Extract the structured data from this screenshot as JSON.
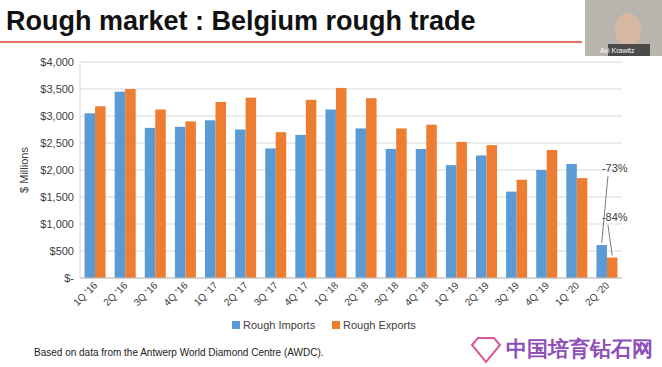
{
  "chart_data": {
    "type": "bar",
    "title": "Rough market : Belgium rough trade",
    "y_label": "$ Millions",
    "categories": [
      "1Q '16",
      "2Q '16",
      "3Q '16",
      "4Q '16",
      "1Q '17",
      "2Q '17",
      "3Q '17",
      "4Q '17",
      "1Q '18",
      "2Q '18",
      "3Q '18",
      "4Q '18",
      "1Q '19",
      "2Q '19",
      "3Q '19",
      "4Q '19",
      "1Q '20",
      "2Q '20"
    ],
    "series": [
      {
        "name": "Rough Imports",
        "color": "#5b9bd5",
        "values": [
          3050,
          3450,
          2780,
          2800,
          2920,
          2750,
          2400,
          2650,
          3120,
          2770,
          2390,
          2390,
          2090,
          2270,
          1600,
          2000,
          2110,
          610
        ]
      },
      {
        "name": "Rough Exports",
        "color": "#ed7d31",
        "values": [
          3180,
          3500,
          3120,
          2900,
          3260,
          3340,
          2700,
          3300,
          3520,
          3330,
          2770,
          2840,
          2520,
          2460,
          1820,
          2370,
          1850,
          380
        ]
      }
    ],
    "ylim": [
      0,
      4000
    ],
    "yticks": [
      {
        "value": 0,
        "label": "$-"
      },
      {
        "value": 500,
        "label": "$500"
      },
      {
        "value": 1000,
        "label": "$1,000"
      },
      {
        "value": 1500,
        "label": "$1,500"
      },
      {
        "value": 2000,
        "label": "$2,000"
      },
      {
        "value": 2500,
        "label": "$2,500"
      },
      {
        "value": 3000,
        "label": "$3,000"
      },
      {
        "value": 3500,
        "label": "$3,500"
      },
      {
        "value": 4000,
        "label": "$4,000"
      }
    ],
    "grid": true,
    "legend": "bottom",
    "annotations": [
      "-73%",
      "-84%"
    ],
    "source": "Based on data from the Antwerp World Diamond Centre (AWDC).",
    "speaker": "Avi Krawitz",
    "watermark": "中国培育钻石网"
  }
}
